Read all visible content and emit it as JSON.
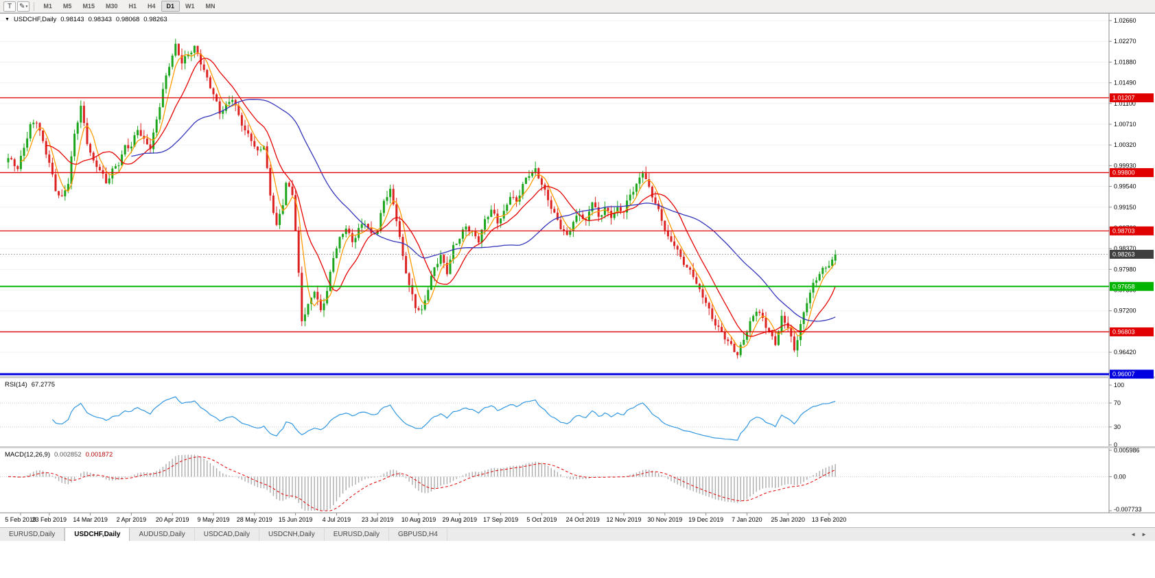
{
  "toolbar": {
    "text_tool_label": "T",
    "draw_tool_glyph": "✎",
    "dropdown_glyph": "▾",
    "timeframes": [
      "M1",
      "M5",
      "M15",
      "M30",
      "H1",
      "H4",
      "D1",
      "W1",
      "MN"
    ],
    "active_timeframe": "D1"
  },
  "chart_header": {
    "dropdown_glyph": "▼",
    "symbol": "USDCHF,Daily",
    "open": "0.98143",
    "high": "0.98343",
    "low": "0.98068",
    "close": "0.98263"
  },
  "rsi_header": {
    "name": "RSI(14)",
    "value": "67.2775"
  },
  "macd_header": {
    "name": "MACD(12,26,9)",
    "value": "0.002852",
    "signal": "0.001872"
  },
  "tabs": {
    "items": [
      {
        "label": "EURUSD,Daily",
        "active": false
      },
      {
        "label": "USDCHF,Daily",
        "active": true
      },
      {
        "label": "AUDUSD,Daily",
        "active": false
      },
      {
        "label": "USDCAD,Daily",
        "active": false
      },
      {
        "label": "USDCNH,Daily",
        "active": false
      },
      {
        "label": "EURUSD,Daily",
        "active": false
      },
      {
        "label": "GBPUSD,H4",
        "active": false
      }
    ],
    "nav_left": "◄",
    "nav_right": "►"
  },
  "chart_data": {
    "type": "candlestick",
    "symbol": "USDCHF",
    "timeframe": "Daily",
    "ohlc_readout": {
      "open": 0.98143,
      "high": 0.98343,
      "low": 0.98068,
      "close": 0.98263
    },
    "colors": {
      "bull": "#1aa51a",
      "bear": "#dd2222"
    },
    "price_axis": {
      "min": 0.95995,
      "max": 1.02738,
      "ticks": [
        "1.02660",
        "1.02270",
        "1.01880",
        "1.01490",
        "1.01100",
        "1.00710",
        "1.00320",
        "0.99930",
        "0.99540",
        "0.99150",
        "0.98760",
        "0.98370",
        "0.97980",
        "0.97590",
        "0.97200",
        "0.96810",
        "0.96420",
        "0.96030"
      ]
    },
    "levels": [
      {
        "label": "1.01207",
        "price": 1.01207,
        "color": "#e00000",
        "width": 1.3
      },
      {
        "label": "0.99800",
        "price": 0.998,
        "color": "#e00000",
        "width": 1.3
      },
      {
        "label": "0.98703",
        "price": 0.98703,
        "color": "#e00000",
        "width": 1.3
      },
      {
        "label": "0.97658",
        "price": 0.97658,
        "color": "#00b400",
        "width": 2
      },
      {
        "label": "0.96803",
        "price": 0.96803,
        "color": "#e00000",
        "width": 1.3
      },
      {
        "label": "0.96007",
        "price": 0.96007,
        "color": "#0000e0",
        "width": 3
      }
    ],
    "current_price": {
      "label": "0.98263",
      "value": 0.98263,
      "box_color": "#3f3f3f"
    },
    "x_axis": {
      "labels": [
        "5 Feb 2019",
        "23 Feb 2019",
        "14 Mar 2019",
        "2 Apr 2019",
        "20 Apr 2019",
        "9 May 2019",
        "28 May 2019",
        "15 Jun 2019",
        "4 Jul 2019",
        "23 Jul 2019",
        "10 Aug 2019",
        "29 Aug 2019",
        "17 Sep 2019",
        "5 Oct 2019",
        "24 Oct 2019",
        "12 Nov 2019",
        "30 Nov 2019",
        "19 Dec 2019",
        "7 Jan 2020",
        "25 Jan 2020",
        "13 Feb 2020"
      ]
    },
    "candle_count": 263,
    "candles_per_label": 13,
    "close_path_anchors": [
      [
        0,
        1.0005
      ],
      [
        3,
        0.999
      ],
      [
        5,
        1.003
      ],
      [
        7,
        1.0068
      ],
      [
        9,
        1.0075
      ],
      [
        11,
        1.0035
      ],
      [
        13,
        1.0
      ],
      [
        15,
        0.995
      ],
      [
        17,
        0.9932
      ],
      [
        19,
        0.996
      ],
      [
        21,
        1.005
      ],
      [
        23,
        1.0105
      ],
      [
        25,
        1.004
      ],
      [
        27,
        1.0
      ],
      [
        29,
        0.9985
      ],
      [
        31,
        0.9958
      ],
      [
        33,
        0.9985
      ],
      [
        35,
        1.0
      ],
      [
        37,
        1.003
      ],
      [
        39,
        1.0028
      ],
      [
        41,
        1.006
      ],
      [
        43,
        1.004
      ],
      [
        45,
        1.003
      ],
      [
        47,
        1.008
      ],
      [
        49,
        1.0135
      ],
      [
        51,
        1.018
      ],
      [
        53,
        1.0218
      ],
      [
        55,
        1.019
      ],
      [
        57,
        1.0205
      ],
      [
        59,
        1.0215
      ],
      [
        61,
        1.0185
      ],
      [
        63,
        1.0155
      ],
      [
        65,
        1.013
      ],
      [
        67,
        1.0095
      ],
      [
        69,
        1.0105
      ],
      [
        71,
        1.0118
      ],
      [
        73,
        1.0085
      ],
      [
        75,
        1.006
      ],
      [
        77,
        1.0045
      ],
      [
        79,
        1.0018
      ],
      [
        81,
        1.003
      ],
      [
        83,
        0.9935
      ],
      [
        85,
        0.988
      ],
      [
        87,
        0.9925
      ],
      [
        88,
        0.9962
      ],
      [
        90,
        0.994
      ],
      [
        91,
        0.987
      ],
      [
        93,
        0.97
      ],
      [
        95,
        0.973
      ],
      [
        97,
        0.9762
      ],
      [
        99,
        0.972
      ],
      [
        101,
        0.9755
      ],
      [
        103,
        0.982
      ],
      [
        105,
        0.9855
      ],
      [
        107,
        0.988
      ],
      [
        109,
        0.985
      ],
      [
        111,
        0.9872
      ],
      [
        113,
        0.9885
      ],
      [
        115,
        0.9862
      ],
      [
        117,
        0.9875
      ],
      [
        119,
        0.993
      ],
      [
        121,
        0.9945
      ],
      [
        123,
        0.989
      ],
      [
        125,
        0.982
      ],
      [
        127,
        0.977
      ],
      [
        129,
        0.973
      ],
      [
        131,
        0.9718
      ],
      [
        133,
        0.976
      ],
      [
        135,
        0.98
      ],
      [
        137,
        0.9825
      ],
      [
        139,
        0.9795
      ],
      [
        141,
        0.984
      ],
      [
        143,
        0.9855
      ],
      [
        145,
        0.9878
      ],
      [
        147,
        0.9868
      ],
      [
        149,
        0.9855
      ],
      [
        151,
        0.989
      ],
      [
        153,
        0.9908
      ],
      [
        155,
        0.9885
      ],
      [
        157,
        0.9905
      ],
      [
        159,
        0.994
      ],
      [
        161,
        0.9925
      ],
      [
        163,
        0.9955
      ],
      [
        165,
        0.9975
      ],
      [
        167,
        0.9985
      ],
      [
        169,
        0.9962
      ],
      [
        171,
        0.993
      ],
      [
        173,
        0.99
      ],
      [
        175,
        0.9875
      ],
      [
        177,
        0.986
      ],
      [
        179,
        0.989
      ],
      [
        181,
        0.9905
      ],
      [
        183,
        0.9885
      ],
      [
        185,
        0.9925
      ],
      [
        187,
        0.9895
      ],
      [
        189,
        0.9915
      ],
      [
        191,
        0.99
      ],
      [
        193,
        0.991
      ],
      [
        195,
        0.9905
      ],
      [
        197,
        0.9938
      ],
      [
        199,
        0.9958
      ],
      [
        201,
        0.9985
      ],
      [
        203,
        0.995
      ],
      [
        205,
        0.992
      ],
      [
        207,
        0.989
      ],
      [
        209,
        0.9858
      ],
      [
        211,
        0.9848
      ],
      [
        213,
        0.982
      ],
      [
        215,
        0.9798
      ],
      [
        217,
        0.9785
      ],
      [
        219,
        0.9758
      ],
      [
        221,
        0.974
      ],
      [
        223,
        0.9705
      ],
      [
        225,
        0.9685
      ],
      [
        227,
        0.9668
      ],
      [
        229,
        0.9655
      ],
      [
        231,
        0.964
      ],
      [
        233,
        0.9668
      ],
      [
        235,
        0.9695
      ],
      [
        237,
        0.972
      ],
      [
        239,
        0.9705
      ],
      [
        241,
        0.9682
      ],
      [
        243,
        0.966
      ],
      [
        245,
        0.9705
      ],
      [
        247,
        0.9688
      ],
      [
        249,
        0.9645
      ],
      [
        251,
        0.9695
      ],
      [
        253,
        0.974
      ],
      [
        255,
        0.9768
      ],
      [
        257,
        0.9788
      ],
      [
        259,
        0.9802
      ],
      [
        261,
        0.9815
      ],
      [
        262,
        0.98263
      ]
    ],
    "moving_averages": [
      {
        "period": 5,
        "color": "#ff9900"
      },
      {
        "period": 13,
        "color": "#e60000"
      },
      {
        "period": 40,
        "color": "#3333bb"
      }
    ],
    "rsi": {
      "period": 14,
      "value": 67.2775,
      "color": "#2f96e0",
      "levels": [
        30,
        70
      ],
      "scale_ticks": [
        "100",
        "70",
        "30",
        "0"
      ]
    },
    "macd": {
      "fast": 12,
      "slow": 26,
      "signal_period": 9,
      "value": 0.002852,
      "signal_value": 0.001872,
      "histogram_color": "#ababab",
      "signal_color": "#e00000",
      "axis": {
        "max": 0.005986,
        "min": -0.007733,
        "ticks": [
          {
            "label": "0.005986",
            "value": 0.005986
          },
          {
            "label": "0.00",
            "value": 0
          },
          {
            "label": "-0.007733",
            "value": -0.007733
          }
        ]
      }
    }
  }
}
